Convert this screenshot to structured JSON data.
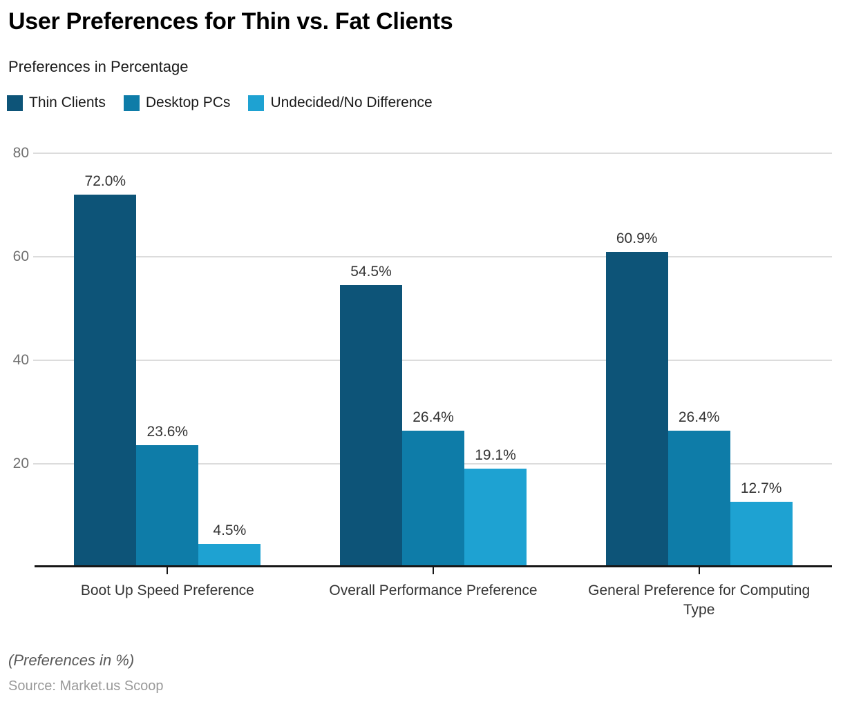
{
  "title": "User Preferences for Thin vs. Fat Clients",
  "subtitle": "Preferences in Percentage",
  "legend": [
    {
      "label": "Thin Clients",
      "color": "#0d5478"
    },
    {
      "label": "Desktop PCs",
      "color": "#0e7ca8"
    },
    {
      "label": "Undecided/No Difference",
      "color": "#1ea2d2"
    }
  ],
  "chart_data": {
    "type": "bar",
    "title": "User Preferences for Thin vs. Fat Clients",
    "subtitle": "Preferences in Percentage",
    "categories": [
      "Boot Up Speed Preference",
      "Overall Performance Preference",
      "General Preference for Computing Type"
    ],
    "series": [
      {
        "name": "Thin Clients",
        "color": "#0d5478",
        "values": [
          72.0,
          54.5,
          60.9
        ],
        "labels": [
          "72.0%",
          "54.5%",
          "60.9%"
        ]
      },
      {
        "name": "Desktop PCs",
        "color": "#0e7ca8",
        "values": [
          23.6,
          26.4,
          26.4
        ],
        "labels": [
          "23.6%",
          "26.4%",
          "26.4%"
        ]
      },
      {
        "name": "Undecided/No Difference",
        "color": "#1ea2d2",
        "values": [
          4.5,
          19.1,
          12.7
        ],
        "labels": [
          "4.5%",
          "19.1%",
          "12.7%"
        ]
      }
    ],
    "yticks": [
      20,
      40,
      60,
      80
    ],
    "ytick_labels": [
      "20",
      "40",
      "60",
      "80"
    ],
    "ylim": [
      0,
      82
    ],
    "grid": true,
    "legend_position": "top",
    "axis_color": "#161616",
    "gridline_color": "#dcdcdc"
  },
  "footer": {
    "note": "(Preferences in %)",
    "source": "Source: Market.us Scoop"
  }
}
